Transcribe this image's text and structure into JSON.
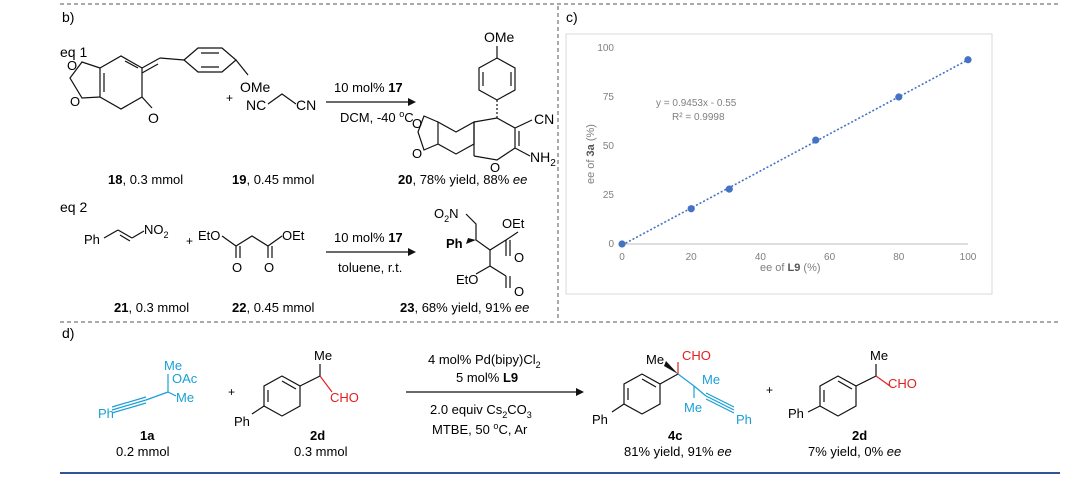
{
  "panel_b": {
    "label": "b)",
    "eq1": {
      "label": "eq 1",
      "plus": "+",
      "r1_ome": "OMe",
      "r1_o": "O",
      "r2_nc": "NC",
      "r2_cn": "CN",
      "cond_top": "10 mol% ",
      "cond_top_bold": "17",
      "cond_bottom": "DCM, -40 ",
      "cond_bottom_sup": "o",
      "cond_bottom_end": "C",
      "p_ome": "OMe",
      "p_cn": "CN",
      "p_nh2": "NH",
      "p_nh2_sub": "2",
      "lab18_bold": "18",
      "lab18_rest": ", 0.3 mmol",
      "lab19_bold": "19",
      "lab19_rest": ", 0.45 mmol",
      "lab20_bold": "20",
      "lab20_rest": ", 78% yield, 88% ",
      "lab20_ee": "ee"
    },
    "eq2": {
      "label": "eq 2",
      "ph": "Ph",
      "no2": "NO",
      "no2_sub": "2",
      "plus": "+",
      "eto": "EtO",
      "oet": "OEt",
      "o": "O",
      "cond_top": "10 mol% ",
      "cond_top_bold": "17",
      "cond_bottom": "toluene, r.t.",
      "p_o2n": "O",
      "p_o2n_sub": "2",
      "p_o2n_n": "N",
      "p_oet": "OEt",
      "p_ph": "Ph",
      "p_eto": "EtO",
      "p_o": "O",
      "lab21_bold": "21",
      "lab21_rest": ", 0.3 mmol",
      "lab22_bold": "22",
      "lab22_rest": ", 0.45 mmol",
      "lab23_bold": "23",
      "lab23_rest": ", 68% yield, 91% ",
      "lab23_ee": "ee"
    }
  },
  "panel_c": {
    "label": "c)",
    "chart_data": {
      "type": "scatter",
      "x": [
        0,
        20,
        31,
        56,
        80,
        100
      ],
      "y": [
        0,
        18,
        28,
        53,
        75,
        94
      ],
      "xlim": [
        0,
        100
      ],
      "ylim": [
        0,
        100
      ],
      "x_ticks": [
        0,
        20,
        40,
        60,
        80,
        100
      ],
      "y_ticks": [
        0,
        25,
        50,
        75,
        100
      ],
      "xlabel_pre": "ee of ",
      "xlabel_bold": "L9",
      "xlabel_post": " (%)",
      "ylabel_pre": "ee of ",
      "ylabel_bold": "3a",
      "ylabel_post": " (%)",
      "fit_slope": 0.9453,
      "fit_intercept": -0.55,
      "equation": "y = 0.9453x - 0.55",
      "r2": "R² = 0.9998",
      "point_color": "#4472c4",
      "line_color": "#4472c4",
      "trendline": "dotted",
      "grid": false
    }
  },
  "panel_d": {
    "label": "d)",
    "r1_me": "Me",
    "r1_oac": "OAc",
    "r1_me2": "Me",
    "r1_ph": "Ph",
    "plus": "+",
    "r2_me": "Me",
    "r2_cho": "CHO",
    "r2_ph": "Ph",
    "cond1_a": "4 mol% Pd(bipy)Cl",
    "cond1_sub": "2",
    "cond2_a": "5 mol% ",
    "cond2_bold": "L9",
    "cond3_a": "2.0 equiv Cs",
    "cond3_sub1": "2",
    "cond3_b": "CO",
    "cond3_sub2": "3",
    "cond4_a": "MTBE, 50 ",
    "cond4_sup": "o",
    "cond4_b": "C, Ar",
    "p_me": "Me",
    "p_cho": "CHO",
    "p_me2": "Me",
    "p_me3": "Me",
    "p_ph": "Ph",
    "p_ph2": "Ph",
    "p2_me": "Me",
    "p2_cho": "CHO",
    "p2_ph": "Ph",
    "lab1a": "1a",
    "lab1a_sub": "0.2 mmol",
    "lab2d": "2d",
    "lab2d_sub": "0.3 mmol",
    "lab4c": "4c",
    "lab4c_sub_a": "81% yield, 91% ",
    "lab4c_ee": "ee",
    "lab2d2": "2d",
    "lab2d2_sub_a": "7% yield, 0% ",
    "lab2d2_ee": "ee"
  },
  "colors": {
    "cyan_fragment": "#1a9fd6",
    "red_fragment": "#e02020",
    "frame_blue": "#2f5597"
  }
}
